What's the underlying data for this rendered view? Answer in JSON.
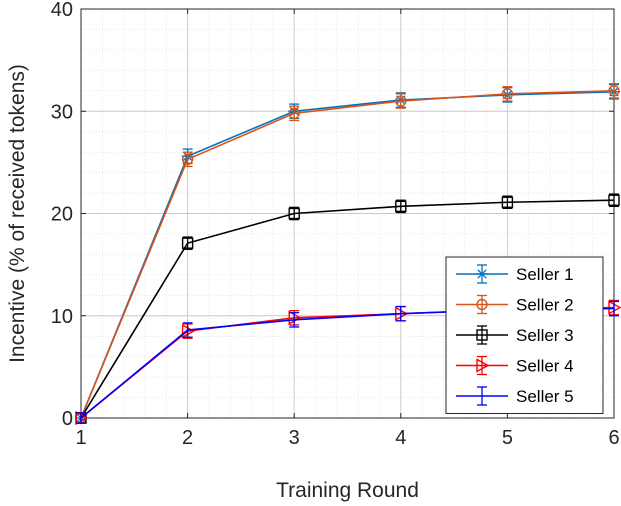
{
  "chart_data": {
    "type": "line",
    "xlabel": "Training Round",
    "ylabel": "Incentive (% of received tokens)",
    "x": [
      1,
      2,
      3,
      4,
      5,
      6
    ],
    "xlim": [
      1,
      6
    ],
    "ylim": [
      0,
      40
    ],
    "xticks": [
      "1",
      "2",
      "3",
      "4",
      "5",
      "6"
    ],
    "yticks": [
      "0",
      "10",
      "20",
      "30",
      "40"
    ],
    "grid": true,
    "minor_grid": true,
    "legend_position": "bottom-right",
    "series": [
      {
        "name": "Seller 1",
        "color": "#0072BD",
        "marker": "asterisk",
        "values": [
          0,
          25.6,
          30.0,
          31.1,
          31.6,
          31.9
        ],
        "errors": [
          0.5,
          0.7,
          0.7,
          0.7,
          0.7,
          0.7
        ]
      },
      {
        "name": "Seller 2",
        "color": "#D95319",
        "marker": "circle",
        "values": [
          0,
          25.3,
          29.8,
          31.0,
          31.7,
          32.0
        ],
        "errors": [
          0.5,
          0.7,
          0.7,
          0.7,
          0.7,
          0.7
        ]
      },
      {
        "name": "Seller 3",
        "color": "#000000",
        "marker": "square",
        "values": [
          0,
          17.1,
          20.0,
          20.7,
          21.1,
          21.3
        ],
        "errors": [
          0.5,
          0.6,
          0.6,
          0.6,
          0.6,
          0.6
        ]
      },
      {
        "name": "Seller 4",
        "color": "#FF0000",
        "marker": "triangle-right",
        "values": [
          0,
          8.5,
          9.8,
          10.2,
          10.6,
          10.8
        ],
        "errors": [
          0.5,
          0.7,
          0.7,
          0.7,
          0.7,
          0.7
        ]
      },
      {
        "name": "Seller 5",
        "color": "#0000FF",
        "marker": "none",
        "values": [
          0,
          8.6,
          9.6,
          10.2,
          10.6,
          10.7
        ],
        "errors": [
          0.5,
          0.7,
          0.7,
          0.7,
          0.7,
          0.7
        ]
      }
    ]
  }
}
